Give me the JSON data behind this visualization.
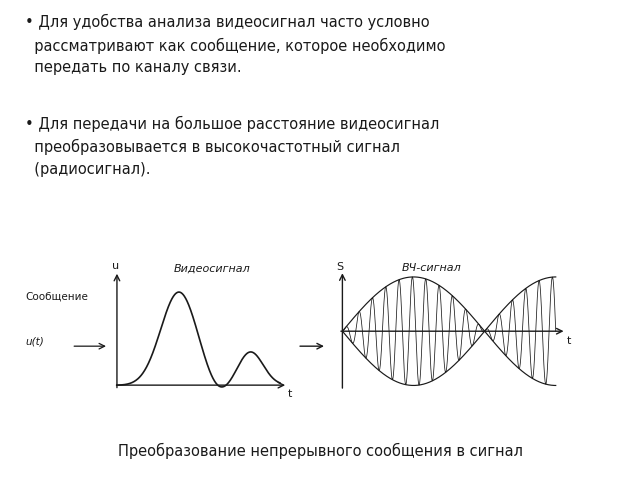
{
  "bg_color": "#ffffff",
  "bullet1": "• Для удобства анализа видеосигнал часто условно\n  рассматривают как сообщение, которое необходимо\n  передать по каналу связи.",
  "bullet2": "• Для передачи на большое расстояние видеосигнал\n  преобразовывается в высокочастотный сигнал\n  (радиосигнал).",
  "caption": "Преобразование непрерывного сообщения в сигнал",
  "label_u": "u",
  "label_videosignal": "Видеосигнал",
  "label_soobshenie": "Сообщение",
  "label_ut": "u(t)",
  "label_t1": "t",
  "label_S": "S",
  "label_vch": "ВЧ-сигнал",
  "label_t2": "t",
  "line_color": "#1a1a1a",
  "axes_color": "#1a1a1a",
  "text_color": "#1a1a1a"
}
